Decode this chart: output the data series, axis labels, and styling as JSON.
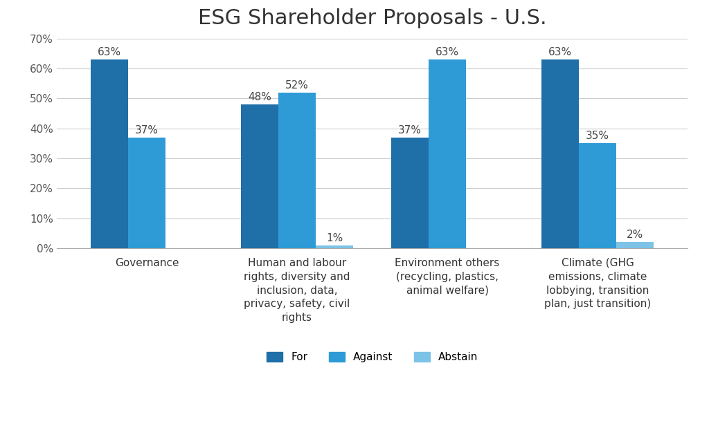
{
  "title": "ESG Shareholder Proposals - U.S.",
  "categories": [
    "Governance",
    "Human and labour\nrights, diversity and\ninclusion, data,\nprivacy, safety, civil\nrights",
    "Environment others\n(recycling, plastics,\nanimal welfare)",
    "Climate (GHG\nemissions, climate\nlobbying, transition\nplan, just transition)"
  ],
  "series": {
    "For": [
      63,
      48,
      37,
      63
    ],
    "Against": [
      37,
      52,
      63,
      35
    ],
    "Abstain": [
      0,
      1,
      0,
      2
    ]
  },
  "labels": {
    "For": [
      "63%",
      "48%",
      "37%",
      "63%"
    ],
    "Against": [
      "37%",
      "52%",
      "63%",
      "35%"
    ],
    "Abstain": [
      "",
      "1%",
      "",
      "2%"
    ]
  },
  "colors": {
    "For": "#1F6FA8",
    "Against": "#2E9BD6",
    "Abstain": "#7DC3E8"
  },
  "ylim": [
    0,
    70
  ],
  "yticks": [
    0,
    10,
    20,
    30,
    40,
    50,
    60,
    70
  ],
  "ytick_labels": [
    "0%",
    "10%",
    "20%",
    "30%",
    "40%",
    "50%",
    "60%",
    "70%"
  ],
  "background_color": "#ffffff",
  "grid_color": "#cccccc",
  "bar_width": 0.25,
  "legend_labels": [
    "For",
    "Against",
    "Abstain"
  ],
  "title_fontsize": 22,
  "tick_fontsize": 11,
  "label_fontsize": 11,
  "legend_fontsize": 11,
  "category_fontsize": 11
}
